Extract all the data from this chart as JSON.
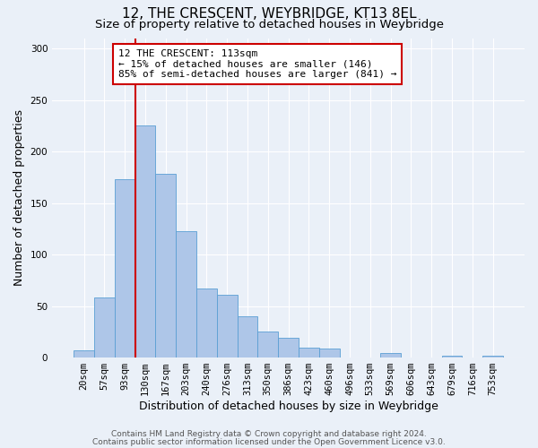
{
  "title": "12, THE CRESCENT, WEYBRIDGE, KT13 8EL",
  "subtitle": "Size of property relative to detached houses in Weybridge",
  "xlabel": "Distribution of detached houses by size in Weybridge",
  "ylabel": "Number of detached properties",
  "bar_labels": [
    "20sqm",
    "57sqm",
    "93sqm",
    "130sqm",
    "167sqm",
    "203sqm",
    "240sqm",
    "276sqm",
    "313sqm",
    "350sqm",
    "386sqm",
    "423sqm",
    "460sqm",
    "496sqm",
    "533sqm",
    "569sqm",
    "606sqm",
    "643sqm",
    "679sqm",
    "716sqm",
    "753sqm"
  ],
  "bar_heights": [
    7,
    58,
    173,
    225,
    178,
    123,
    67,
    61,
    40,
    25,
    19,
    10,
    9,
    0,
    0,
    4,
    0,
    0,
    2,
    0,
    2
  ],
  "bar_color": "#aec6e8",
  "bar_edge_color": "#5a9fd4",
  "vline_color": "#cc0000",
  "annotation_box_text": "12 THE CRESCENT: 113sqm\n← 15% of detached houses are smaller (146)\n85% of semi-detached houses are larger (841) →",
  "ylim": [
    0,
    310
  ],
  "yticks": [
    0,
    50,
    100,
    150,
    200,
    250,
    300
  ],
  "footer_line1": "Contains HM Land Registry data © Crown copyright and database right 2024.",
  "footer_line2": "Contains public sector information licensed under the Open Government Licence v3.0.",
  "bg_color": "#eaf0f8",
  "grid_color": "#ffffff",
  "title_fontsize": 11,
  "subtitle_fontsize": 9.5,
  "axis_label_fontsize": 9,
  "tick_fontsize": 7.5,
  "footer_fontsize": 6.5
}
